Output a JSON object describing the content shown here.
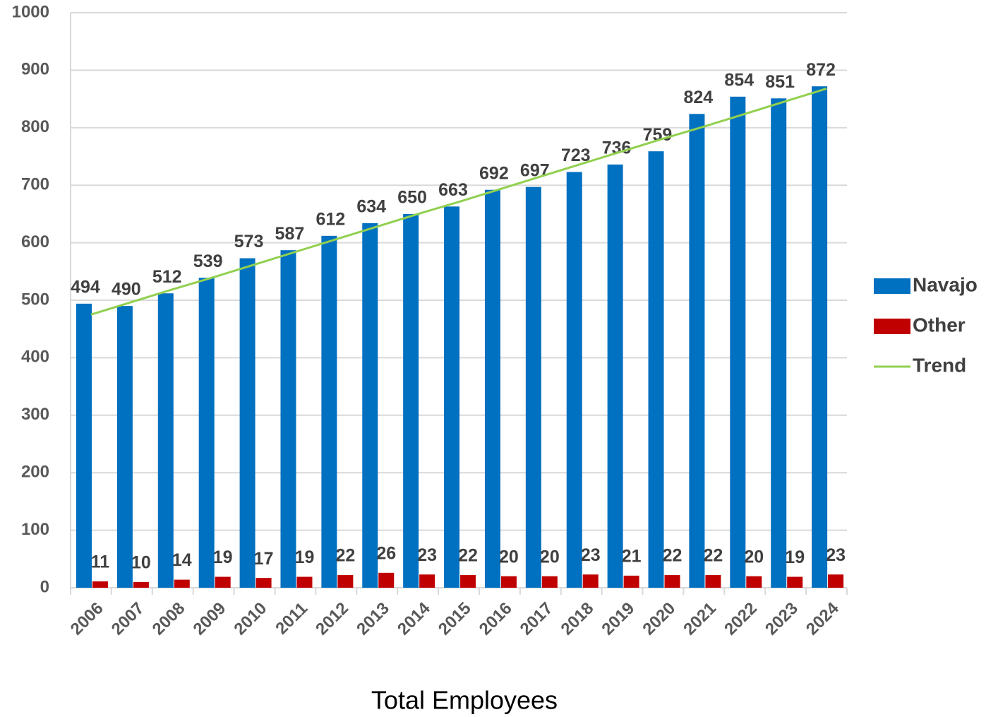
{
  "chart_data": {
    "type": "bar",
    "title": "Total Employees",
    "categories": [
      "2006",
      "2007",
      "2008",
      "2009",
      "2010",
      "2011",
      "2012",
      "2013",
      "2014",
      "2015",
      "2016",
      "2017",
      "2018",
      "2019",
      "2020",
      "2021",
      "2022",
      "2023",
      "2024"
    ],
    "series": [
      {
        "name": "Navajo",
        "color": "#0070c0",
        "values": [
          494,
          490,
          512,
          539,
          573,
          587,
          612,
          634,
          650,
          663,
          692,
          697,
          723,
          736,
          759,
          824,
          854,
          851,
          872
        ]
      },
      {
        "name": "Other",
        "color": "#c00000",
        "values": [
          11,
          10,
          14,
          19,
          17,
          19,
          22,
          26,
          23,
          22,
          20,
          20,
          23,
          21,
          22,
          22,
          20,
          19,
          23
        ]
      },
      {
        "name": "Trend",
        "type": "line",
        "color": "#92d050",
        "values": [
          475,
          497,
          519,
          540,
          562,
          584,
          606,
          628,
          650,
          671,
          693,
          715,
          737,
          759,
          781,
          802,
          824,
          846,
          868
        ]
      }
    ],
    "ylim": [
      0,
      1000
    ],
    "yticks": [
      0,
      100,
      200,
      300,
      400,
      500,
      600,
      700,
      800,
      900,
      1000
    ],
    "grid": true,
    "legend": "right"
  }
}
